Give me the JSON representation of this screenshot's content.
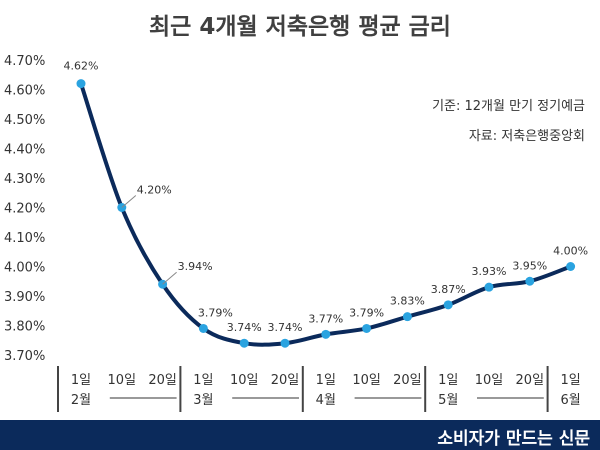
{
  "title": "최근 4개월 저축은행 평균 금리",
  "notes": {
    "basis": "기준: 12개월 만기 정기예금",
    "source": "자료: 저축은행중앙회"
  },
  "footer": "소비자가 만드는 신문",
  "colors": {
    "line": "#0b2a5b",
    "marker": "#2aa3e0",
    "footer_bg": "#0b2a5b",
    "text": "#333333"
  },
  "chart_data": {
    "type": "line",
    "title": "최근 4개월 저축은행 평균 금리",
    "ylim": [
      3.7,
      4.7
    ],
    "yticks": [
      "3.70%",
      "3.80%",
      "3.90%",
      "4.00%",
      "4.10%",
      "4.20%",
      "4.30%",
      "4.40%",
      "4.50%",
      "4.60%",
      "4.70%"
    ],
    "grid": false,
    "x_day_labels": [
      "1일",
      "10일",
      "20일",
      "1일",
      "10일",
      "20일",
      "1일",
      "10일",
      "20일",
      "1일",
      "10일",
      "20일",
      "1일"
    ],
    "x_month_labels": [
      "2월",
      "3월",
      "4월",
      "5월",
      "6월"
    ],
    "values": [
      4.62,
      4.2,
      3.94,
      3.79,
      3.74,
      3.74,
      3.77,
      3.79,
      3.83,
      3.87,
      3.93,
      3.95,
      4.0
    ],
    "value_labels": [
      "4.62%",
      "4.20%",
      "3.94%",
      "3.79%",
      "3.74%",
      "3.74%",
      "3.77%",
      "3.79%",
      "3.83%",
      "3.87%",
      "3.93%",
      "3.95%",
      "4.00%"
    ]
  }
}
